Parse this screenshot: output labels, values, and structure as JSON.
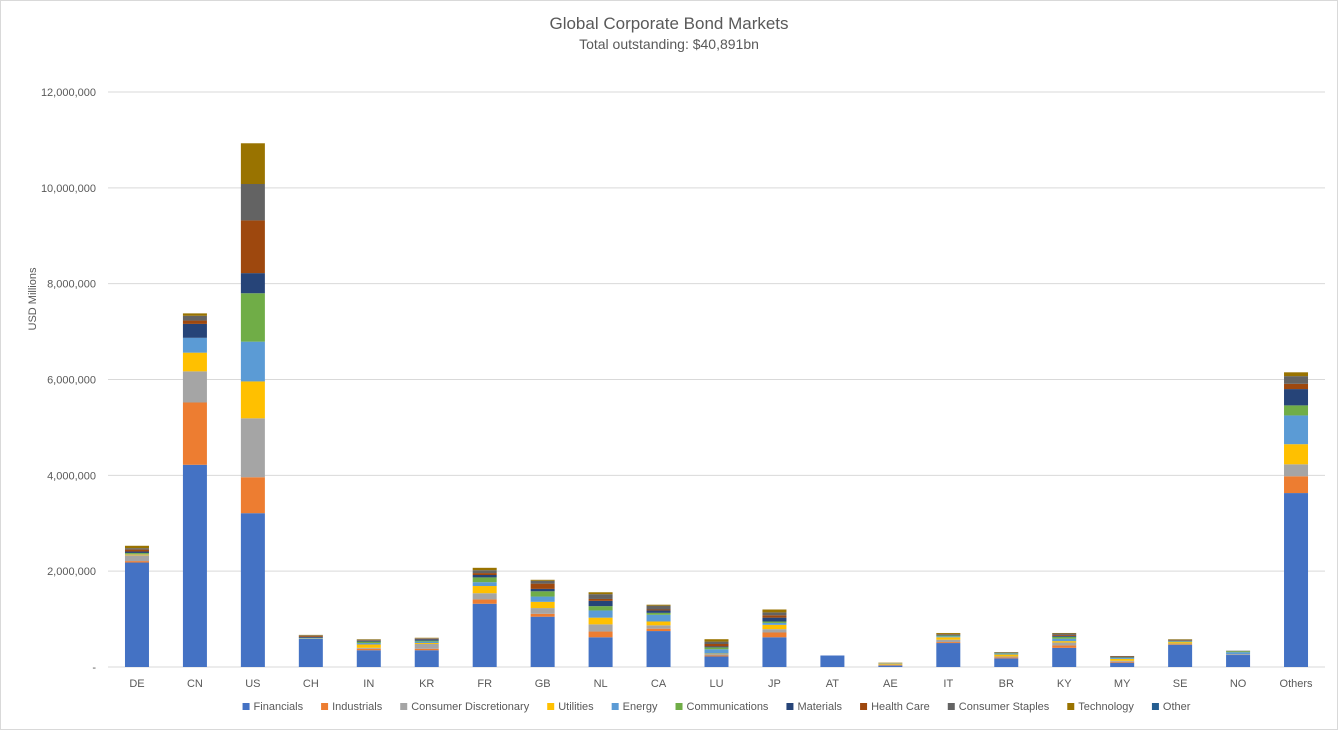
{
  "chart_data": {
    "type": "bar",
    "stacked": true,
    "title": "Global Corporate Bond Markets",
    "subtitle": "Total outstanding: $40,891bn",
    "xlabel": "",
    "ylabel": "USD Millions",
    "ylim": [
      0,
      12000000
    ],
    "yticks": [
      {
        "value": 0,
        "label": "-"
      },
      {
        "value": 2000000,
        "label": "2,000,000"
      },
      {
        "value": 4000000,
        "label": "4,000,000"
      },
      {
        "value": 6000000,
        "label": "6,000,000"
      },
      {
        "value": 8000000,
        "label": "8,000,000"
      },
      {
        "value": 10000000,
        "label": "10,000,000"
      },
      {
        "value": 12000000,
        "label": "12,000,000"
      }
    ],
    "grid": true,
    "legend_position": "bottom",
    "categories": [
      "DE",
      "CN",
      "US",
      "CH",
      "IN",
      "KR",
      "FR",
      "GB",
      "NL",
      "CA",
      "LU",
      "JP",
      "AT",
      "AE",
      "IT",
      "BR",
      "KY",
      "MY",
      "SE",
      "NO",
      "Others"
    ],
    "series": [
      {
        "name": "Financials",
        "color": "#4472C4",
        "values": [
          2180000,
          4220000,
          3210000,
          590000,
          350000,
          350000,
          1320000,
          1050000,
          620000,
          750000,
          220000,
          620000,
          240000,
          30000,
          500000,
          180000,
          400000,
          90000,
          460000,
          250000,
          3630000
        ]
      },
      {
        "name": "Industrials",
        "color": "#ED7D31",
        "values": [
          30000,
          1300000,
          750000,
          0,
          30000,
          30000,
          90000,
          60000,
          120000,
          50000,
          20000,
          100000,
          0,
          10000,
          20000,
          20000,
          50000,
          20000,
          10000,
          0,
          350000
        ]
      },
      {
        "name": "Consumer Discretionary",
        "color": "#A5A5A5",
        "values": [
          120000,
          650000,
          1230000,
          10000,
          20000,
          100000,
          130000,
          120000,
          150000,
          70000,
          30000,
          70000,
          0,
          10000,
          50000,
          20000,
          60000,
          20000,
          20000,
          20000,
          250000
        ]
      },
      {
        "name": "Utilities",
        "color": "#FFC000",
        "values": [
          20000,
          390000,
          770000,
          0,
          70000,
          20000,
          150000,
          130000,
          140000,
          80000,
          10000,
          90000,
          0,
          20000,
          50000,
          40000,
          30000,
          40000,
          30000,
          0,
          420000
        ]
      },
      {
        "name": "Energy",
        "color": "#5B9BD5",
        "values": [
          10000,
          310000,
          830000,
          0,
          30000,
          30000,
          80000,
          110000,
          150000,
          140000,
          90000,
          40000,
          0,
          10000,
          20000,
          20000,
          50000,
          20000,
          10000,
          40000,
          600000
        ]
      },
      {
        "name": "Communications",
        "color": "#70AD47",
        "values": [
          20000,
          0,
          1010000,
          10000,
          30000,
          20000,
          100000,
          110000,
          90000,
          40000,
          40000,
          30000,
          0,
          0,
          20000,
          10000,
          40000,
          10000,
          10000,
          20000,
          210000
        ]
      },
      {
        "name": "Materials",
        "color": "#264478",
        "values": [
          30000,
          290000,
          420000,
          20000,
          20000,
          30000,
          50000,
          50000,
          110000,
          50000,
          20000,
          80000,
          0,
          0,
          10000,
          10000,
          20000,
          10000,
          10000,
          0,
          340000
        ]
      },
      {
        "name": "Health Care",
        "color": "#9E480E",
        "values": [
          40000,
          70000,
          1100000,
          20000,
          10000,
          10000,
          40000,
          110000,
          40000,
          20000,
          50000,
          50000,
          0,
          0,
          10000,
          0,
          20000,
          10000,
          10000,
          0,
          110000
        ]
      },
      {
        "name": "Consumer Staples",
        "color": "#636363",
        "values": [
          30000,
          100000,
          760000,
          10000,
          10000,
          10000,
          60000,
          60000,
          100000,
          80000,
          50000,
          60000,
          0,
          0,
          10000,
          0,
          30000,
          10000,
          10000,
          10000,
          160000
        ]
      },
      {
        "name": "Technology",
        "color": "#997300",
        "values": [
          50000,
          50000,
          850000,
          10000,
          10000,
          10000,
          50000,
          20000,
          40000,
          20000,
          50000,
          60000,
          0,
          10000,
          20000,
          10000,
          10000,
          0,
          10000,
          0,
          80000
        ]
      },
      {
        "name": "Other",
        "color": "#255E91",
        "values": [
          0,
          0,
          0,
          0,
          0,
          0,
          0,
          0,
          0,
          0,
          0,
          0,
          0,
          0,
          0,
          0,
          0,
          0,
          0,
          0,
          0
        ]
      }
    ]
  }
}
